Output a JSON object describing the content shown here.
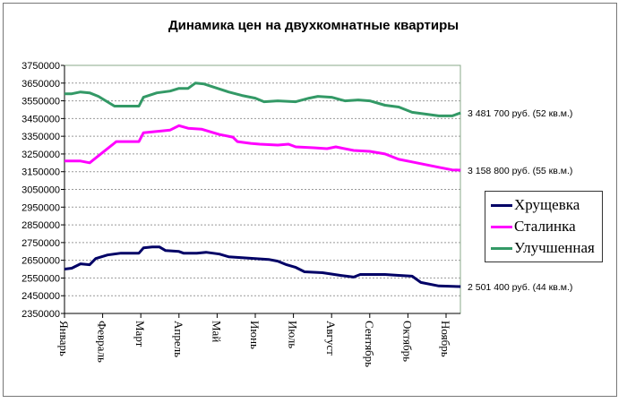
{
  "chart_data": {
    "type": "line",
    "title": "Динамика цен на двухкомнатные квартиры",
    "categories": [
      "Январь",
      "Февраль",
      "Март",
      "Апрель",
      "Май",
      "Июнь",
      "Июль",
      "Август",
      "Сентябрь",
      "Октябрь",
      "Ноябрь"
    ],
    "ylim": [
      2350000,
      3750000
    ],
    "yticks": [
      3750000,
      3650000,
      3550000,
      3450000,
      3350000,
      3250000,
      3150000,
      3050000,
      2950000,
      2850000,
      2750000,
      2650000,
      2550000,
      2450000,
      2350000
    ],
    "ytick_labels": [
      "3750000",
      "3650000",
      "3550000",
      "3450000",
      "3350000",
      "3250000",
      "3150000",
      "3050000",
      "2950000",
      "2850000",
      "2750000",
      "2650000",
      "2550000",
      "2450000",
      "2350000"
    ],
    "grid": "horizontal dashed",
    "legend_position": "right",
    "series": [
      {
        "name": "Хрущевка",
        "color": "#000066",
        "end_label": "2 501 400 руб. (44 кв.м.)",
        "x": [
          0,
          0.19,
          0.42,
          0.66,
          0.82,
          1.13,
          1.48,
          1.95,
          2.07,
          2.3,
          2.49,
          2.65,
          3.0,
          3.12,
          3.47,
          3.71,
          4.06,
          4.3,
          4.65,
          5.0,
          5.35,
          5.59,
          5.82,
          6.06,
          6.29,
          6.76,
          7.23,
          7.58,
          7.75,
          8.4,
          8.76,
          9.11,
          9.34,
          9.81,
          10.38
        ],
        "y": [
          2600000,
          2605000,
          2630000,
          2625000,
          2660000,
          2680000,
          2690000,
          2690000,
          2720000,
          2725000,
          2725000,
          2705000,
          2700000,
          2690000,
          2690000,
          2695000,
          2685000,
          2670000,
          2665000,
          2660000,
          2655000,
          2645000,
          2625000,
          2610000,
          2585000,
          2580000,
          2565000,
          2555000,
          2570000,
          2570000,
          2565000,
          2560000,
          2525000,
          2505000,
          2501400
        ]
      },
      {
        "name": "Сталинка",
        "color": "#ff00ff",
        "end_label": "3 158 800 руб. (55 кв.м.)",
        "x": [
          0,
          0.42,
          0.66,
          1.01,
          1.36,
          1.95,
          2.07,
          2.3,
          2.54,
          2.77,
          3.0,
          3.24,
          3.59,
          4.06,
          4.41,
          4.53,
          4.88,
          5.12,
          5.59,
          5.87,
          6.06,
          6.53,
          6.88,
          7.11,
          7.58,
          8.0,
          8.4,
          8.76,
          9.11,
          9.46,
          9.81,
          10.16,
          10.38
        ],
        "y": [
          3210000,
          3210000,
          3200000,
          3260000,
          3320000,
          3320000,
          3370000,
          3375000,
          3380000,
          3385000,
          3410000,
          3395000,
          3390000,
          3360000,
          3345000,
          3320000,
          3310000,
          3305000,
          3300000,
          3305000,
          3290000,
          3285000,
          3280000,
          3290000,
          3270000,
          3265000,
          3250000,
          3220000,
          3205000,
          3190000,
          3175000,
          3160000,
          3158800
        ]
      },
      {
        "name": "Улучшенная",
        "color": "#339966",
        "end_label": "3 481 700 руб. (52 кв.м.)",
        "x": [
          0,
          0.19,
          0.42,
          0.66,
          0.89,
          1.31,
          1.95,
          2.07,
          2.42,
          2.77,
          3.0,
          3.24,
          3.43,
          3.66,
          3.94,
          4.3,
          4.65,
          5.0,
          5.23,
          5.59,
          6.06,
          6.41,
          6.64,
          7.0,
          7.35,
          7.7,
          8.0,
          8.4,
          8.76,
          9.11,
          9.46,
          9.81,
          10.16,
          10.38
        ],
        "y": [
          3590000,
          3590000,
          3600000,
          3595000,
          3575000,
          3520000,
          3520000,
          3570000,
          3595000,
          3605000,
          3620000,
          3620000,
          3650000,
          3645000,
          3625000,
          3600000,
          3580000,
          3565000,
          3545000,
          3550000,
          3545000,
          3565000,
          3575000,
          3570000,
          3550000,
          3555000,
          3550000,
          3525000,
          3515000,
          3485000,
          3475000,
          3465000,
          3465000,
          3481700
        ]
      }
    ]
  }
}
